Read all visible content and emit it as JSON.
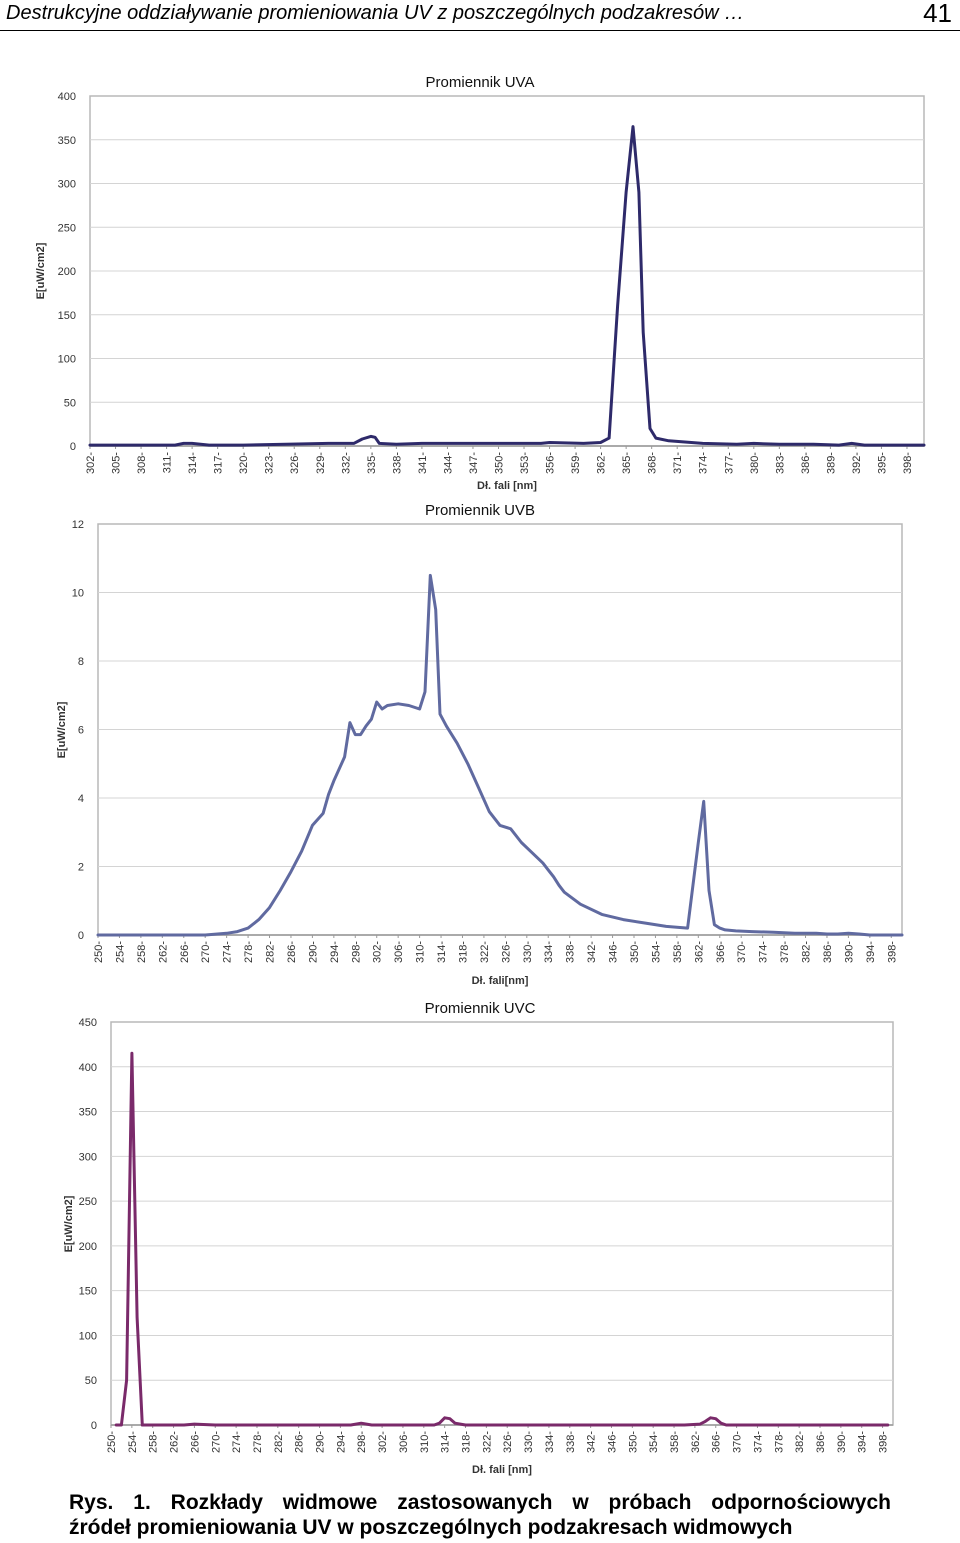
{
  "header": {
    "title": "Destrukcyjne oddziaływanie promieniowania UV z poszczególnych podzakresów …",
    "page_number": "41"
  },
  "caption": {
    "line1": "Rys. 1. Rozkłady widmowe zastosowanych w próbach odpornościowych",
    "line2": "źródeł promieniowania UV w poszczególnych podzakresach widmowych"
  },
  "chart_data": [
    {
      "type": "line",
      "title": "Promiennik UVA",
      "xlabel": "Dł. fali [nm]",
      "ylabel": "E[uW/cm2]",
      "ylim": [
        0,
        400
      ],
      "yticks": [
        0,
        50,
        100,
        150,
        200,
        250,
        300,
        350,
        400
      ],
      "xlim": [
        302,
        400
      ],
      "xticks": [
        302,
        305,
        308,
        311,
        314,
        317,
        320,
        323,
        326,
        329,
        332,
        335,
        338,
        341,
        344,
        347,
        350,
        353,
        356,
        359,
        362,
        365,
        368,
        371,
        374,
        377,
        380,
        383,
        386,
        389,
        392,
        395,
        398
      ],
      "grid": true,
      "color": "#2e2a6a",
      "series": [
        {
          "x": [
            302,
            306,
            310,
            312,
            313,
            314,
            316,
            320,
            325,
            330,
            333,
            334,
            335,
            335.5,
            336,
            338,
            341,
            345,
            350,
            355,
            356,
            360,
            362,
            363,
            364,
            365,
            365.8,
            366.5,
            367,
            367.8,
            368.5,
            370,
            374,
            378,
            380,
            383,
            387,
            390,
            391.5,
            393,
            395,
            398,
            400
          ],
          "y": [
            1,
            1,
            1,
            1,
            3,
            3,
            1,
            1,
            2,
            3,
            3,
            8,
            11,
            10,
            3,
            2,
            3,
            3,
            3,
            3,
            4,
            3,
            4,
            9,
            160,
            290,
            365,
            290,
            130,
            20,
            9,
            6,
            3,
            2,
            3,
            2,
            2,
            1,
            3,
            1,
            1,
            1,
            1
          ]
        }
      ]
    },
    {
      "type": "line",
      "title": "Promiennik UVB",
      "xlabel": "Dł. fali[nm]",
      "ylabel": "E[uW/cm2]",
      "ylim": [
        0,
        12
      ],
      "yticks": [
        0,
        2,
        4,
        6,
        8,
        10,
        12
      ],
      "xlim": [
        250,
        400
      ],
      "xticks": [
        250,
        254,
        258,
        262,
        266,
        270,
        274,
        278,
        282,
        286,
        290,
        294,
        298,
        302,
        306,
        310,
        314,
        318,
        322,
        326,
        330,
        334,
        338,
        342,
        346,
        350,
        354,
        358,
        362,
        366,
        370,
        374,
        378,
        382,
        386,
        390,
        394,
        398
      ],
      "grid": true,
      "color": "#606aa0",
      "series": [
        {
          "x": [
            250,
            260,
            270,
            274,
            276,
            278,
            280,
            282,
            284,
            286,
            288,
            290,
            292,
            293,
            294,
            296,
            297,
            298,
            299,
            300,
            301,
            302,
            303,
            304,
            306,
            308,
            310,
            311,
            312,
            313,
            313.8,
            315,
            317,
            319,
            321,
            323,
            325,
            327,
            329,
            331,
            333,
            334,
            335,
            336,
            337,
            340,
            344,
            348,
            352,
            356,
            360,
            362,
            363,
            364,
            365,
            366,
            367,
            369,
            372,
            376,
            380,
            384,
            386,
            388,
            390,
            392,
            394,
            396,
            398,
            400
          ],
          "y": [
            0,
            0,
            0,
            0.05,
            0.1,
            0.2,
            0.45,
            0.8,
            1.3,
            1.85,
            2.45,
            3.2,
            3.55,
            4.1,
            4.5,
            5.2,
            6.2,
            5.85,
            5.85,
            6.1,
            6.3,
            6.8,
            6.6,
            6.7,
            6.75,
            6.7,
            6.6,
            7.1,
            10.5,
            9.5,
            6.45,
            6.1,
            5.6,
            5.0,
            4.3,
            3.6,
            3.2,
            3.1,
            2.7,
            2.4,
            2.1,
            1.9,
            1.7,
            1.45,
            1.25,
            0.9,
            0.6,
            0.45,
            0.35,
            0.25,
            0.2,
            2.7,
            3.9,
            1.3,
            0.3,
            0.2,
            0.15,
            0.12,
            0.1,
            0.08,
            0.05,
            0.05,
            0.03,
            0.03,
            0.05,
            0.03,
            0,
            0,
            0,
            0
          ]
        }
      ]
    },
    {
      "type": "line",
      "title": "Promiennik UVC",
      "xlabel": "Dł. fali [nm]",
      "ylabel": "E[uW/cm2]",
      "ylim": [
        0,
        450
      ],
      "yticks": [
        0,
        50,
        100,
        150,
        200,
        250,
        300,
        350,
        400,
        450
      ],
      "xlim": [
        250,
        400
      ],
      "xticks": [
        250,
        254,
        258,
        262,
        266,
        270,
        274,
        278,
        282,
        286,
        290,
        294,
        298,
        302,
        306,
        310,
        314,
        318,
        322,
        326,
        330,
        334,
        338,
        342,
        346,
        350,
        354,
        358,
        362,
        366,
        370,
        374,
        378,
        382,
        386,
        390,
        394,
        398
      ],
      "grid": true,
      "color": "#7a2a6a",
      "series": [
        {
          "x": [
            251,
            252,
            253,
            254,
            255,
            256,
            257,
            258,
            262,
            264,
            266,
            270,
            280,
            290,
            296,
            298,
            300,
            310,
            312,
            313,
            314,
            315,
            316,
            318,
            330,
            340,
            350,
            360,
            363,
            364,
            365,
            366,
            367,
            368,
            370,
            380,
            390,
            399
          ],
          "y": [
            0,
            0,
            50,
            415,
            120,
            0,
            0,
            0,
            0,
            0,
            1,
            0,
            0,
            0,
            0,
            2,
            0,
            0,
            0,
            2,
            8,
            7,
            2,
            0,
            0,
            0,
            0,
            0,
            1,
            4,
            8,
            7,
            2,
            0,
            0,
            0,
            0,
            0
          ]
        }
      ]
    }
  ]
}
